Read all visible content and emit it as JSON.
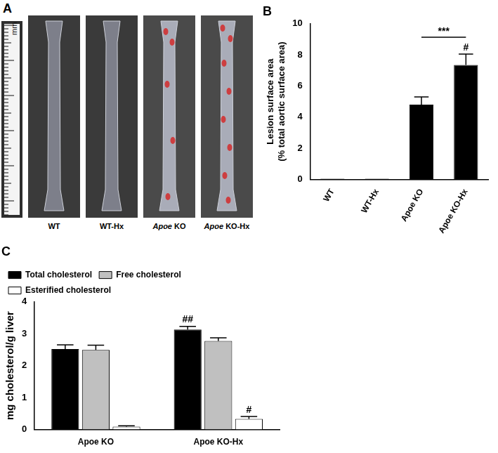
{
  "photo_panel": {
    "title": "A",
    "scale_label": "mm",
    "labels": [
      "WT",
      "WT-Hx",
      "Apoe KO",
      "Apoe KO-Hx"
    ]
  },
  "chart_data": [
    {
      "type": "bar",
      "title": "B",
      "categories": [
        "WT",
        "WT-Hx",
        "Apoe KO",
        "Apoe KO-Hx"
      ],
      "values": [
        0.05,
        0.05,
        4.8,
        7.35
      ],
      "errors": [
        0,
        0,
        0.5,
        0.7
      ],
      "color": "#000000",
      "y_label": [
        "Lesion surface area",
        "(% total aortic surface area)"
      ],
      "ylim": [
        0,
        10
      ],
      "yticks": [
        0,
        2,
        4,
        6,
        8,
        10
      ],
      "grid": false,
      "annotations": [
        {
          "text": "***",
          "categories": [
            "Apoe KO",
            "Apoe KO-Hx"
          ]
        },
        {
          "text": "#",
          "category": "Apoe KO-Hx"
        }
      ]
    },
    {
      "type": "bar",
      "title": "C",
      "categories": [
        "Apoe KO",
        "Apoe KO-Hx"
      ],
      "series": [
        {
          "name": "Total cholesterol",
          "color": "#000000",
          "values": [
            2.52,
            3.13
          ],
          "errors": [
            0.13,
            0.1
          ]
        },
        {
          "name": "Free cholesterol",
          "color": "#c0c0c0",
          "values": [
            2.49,
            2.77
          ],
          "errors": [
            0.15,
            0.1
          ]
        },
        {
          "name": "Esterified cholesterol",
          "color": "#ffffff",
          "values": [
            0.09,
            0.33
          ],
          "errors": [
            0.03,
            0.08
          ]
        }
      ],
      "y_label": "mg cholesterol/g liver",
      "ylim": [
        0,
        4
      ],
      "yticks": [
        0,
        1,
        2,
        3,
        4
      ],
      "grid": false,
      "legend": "top-left",
      "annotations": [
        {
          "text": "##",
          "category": "Apoe KO-Hx",
          "series": "Total cholesterol"
        },
        {
          "text": "#",
          "category": "Apoe KO-Hx",
          "series": "Esterified cholesterol"
        }
      ]
    }
  ]
}
